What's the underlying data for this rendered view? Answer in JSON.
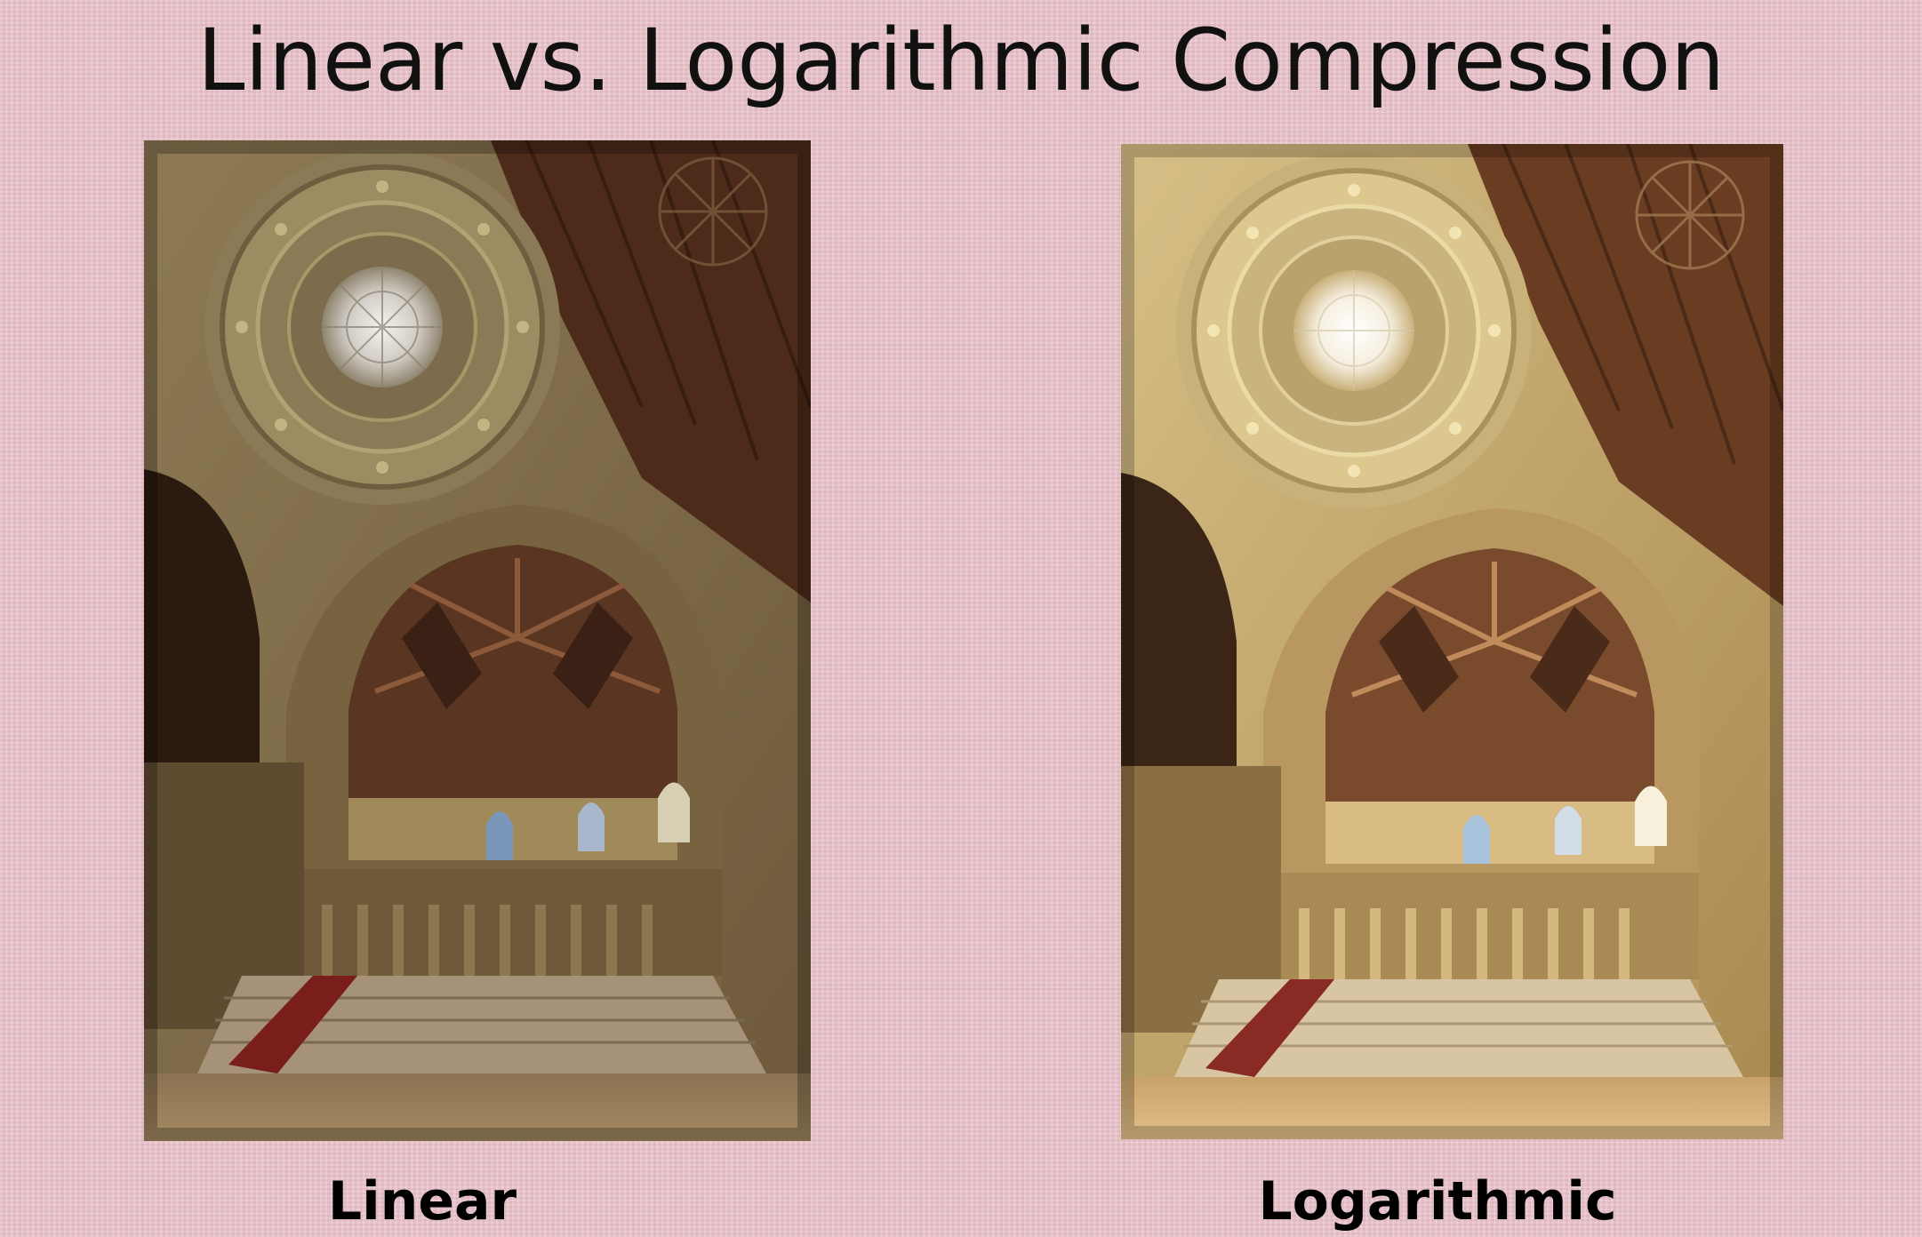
{
  "slide": {
    "title": "Linear vs. Logarithmic Compression",
    "background_color": "#e8c4cb"
  },
  "images": [
    {
      "caption": "Linear",
      "depicts": "church-interior-dome-photo",
      "tone": "dark"
    },
    {
      "caption": "Logarithmic",
      "depicts": "church-interior-dome-photo",
      "tone": "bright"
    }
  ]
}
